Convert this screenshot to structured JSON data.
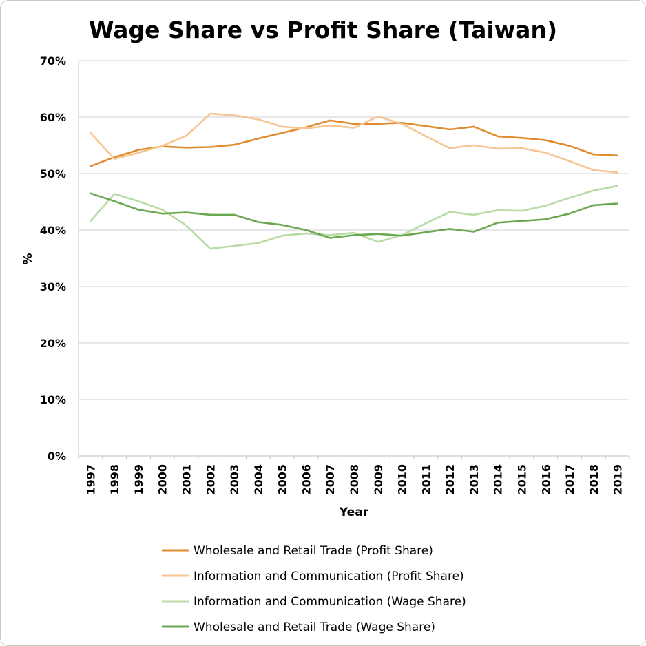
{
  "chart_data": {
    "type": "line",
    "title": "Wage Share vs Profit Share (Taiwan)",
    "xlabel": "Year",
    "ylabel": "%",
    "ylim": [
      0,
      0.7
    ],
    "y_ticks": [
      "0%",
      "10%",
      "20%",
      "30%",
      "40%",
      "50%",
      "60%",
      "70%"
    ],
    "y_tick_values": [
      0,
      0.1,
      0.2,
      0.3,
      0.4,
      0.5,
      0.6,
      0.7
    ],
    "grid": true,
    "legend_position": "bottom",
    "x": [
      "1997",
      "1998",
      "1999",
      "2000",
      "2001",
      "2002",
      "2003",
      "2004",
      "2005",
      "2006",
      "2007",
      "2008",
      "2009",
      "2010",
      "2011",
      "2012",
      "2013",
      "2014",
      "2015",
      "2016",
      "2017",
      "2018",
      "2019"
    ],
    "series": [
      {
        "name": "Wholesale and Retail Trade (Profit Share)",
        "color": "#E08C2E",
        "values": [
          0.513,
          0.529,
          0.542,
          0.548,
          0.546,
          0.547,
          0.551,
          0.562,
          0.572,
          0.582,
          0.594,
          0.588,
          0.588,
          0.59,
          0.584,
          0.578,
          0.583,
          0.566,
          0.563,
          0.559,
          0.549,
          0.534,
          0.532
        ]
      },
      {
        "name": "Information and Communication (Profit Share)",
        "color": "#F6C592",
        "values": [
          0.572,
          0.526,
          0.537,
          0.549,
          0.567,
          0.606,
          0.603,
          0.596,
          0.583,
          0.58,
          0.585,
          0.581,
          0.601,
          0.588,
          0.566,
          0.545,
          0.55,
          0.544,
          0.545,
          0.537,
          0.522,
          0.506,
          0.502
        ]
      },
      {
        "name": "Information and Communication (Wage Share)",
        "color": "#B8DBA5",
        "values": [
          0.416,
          0.464,
          0.451,
          0.436,
          0.408,
          0.367,
          0.372,
          0.377,
          0.39,
          0.394,
          0.391,
          0.395,
          0.379,
          0.391,
          0.412,
          0.432,
          0.427,
          0.435,
          0.434,
          0.443,
          0.457,
          0.47,
          0.478
        ]
      },
      {
        "name": "Wholesale and Retail Trade (Wage Share)",
        "color": "#6AA84F",
        "values": [
          0.465,
          0.451,
          0.436,
          0.429,
          0.431,
          0.427,
          0.427,
          0.414,
          0.409,
          0.4,
          0.386,
          0.391,
          0.393,
          0.39,
          0.396,
          0.402,
          0.397,
          0.413,
          0.416,
          0.419,
          0.429,
          0.444,
          0.447
        ]
      }
    ]
  }
}
